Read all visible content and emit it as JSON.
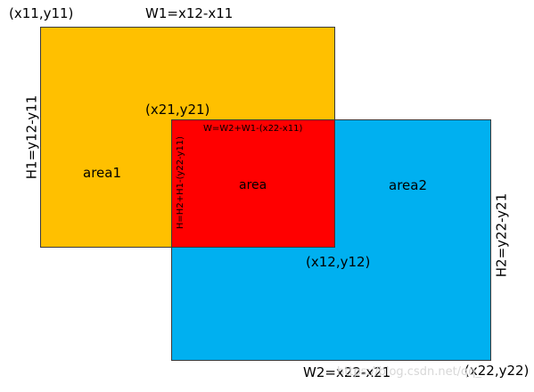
{
  "colors": {
    "rect1_fill": "#ffc000",
    "rect2_fill": "#00b0f0",
    "overlap_fill": "#ff0000",
    "border": "#3a3a3a",
    "text": "#000000"
  },
  "rect1": {
    "top_left_label": "(x11,y11)",
    "width_label": "W1=x12-x11",
    "height_label": "H1=y12-y11",
    "area_label": "area1"
  },
  "rect2": {
    "top_left_label": "(x21,y21)",
    "width_label": "W2=x22-x21",
    "height_label": "H2=y22-y21",
    "area_label": "area2",
    "bottom_right_label": "(x22,y22)"
  },
  "overlap": {
    "width_label": "W=W2+W1-(x22-x11)",
    "height_label": "H=H2+H1-(y22-y11)",
    "area_label": "area",
    "rect1_bottom_right_label": "(x12,y12)"
  },
  "watermark": "https://blog.csdn.net/qq_"
}
